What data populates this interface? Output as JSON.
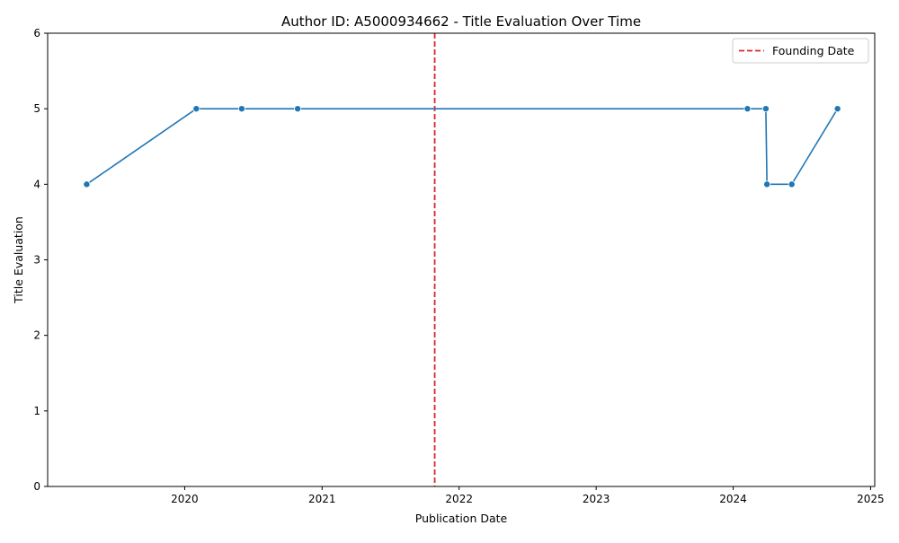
{
  "chart_data": {
    "type": "line",
    "title": "Author ID: A5000934662 - Title Evaluation Over Time",
    "xlabel": "Publication Date",
    "ylabel": "Title Evaluation",
    "xlim": [
      "2019-01-01",
      "2025-01-12"
    ],
    "ylim": [
      0,
      6
    ],
    "x_ticks": [
      "2020",
      "2021",
      "2022",
      "2023",
      "2024",
      "2025"
    ],
    "y_ticks": [
      "0",
      "1",
      "2",
      "3",
      "4",
      "5",
      "6"
    ],
    "grid": false,
    "legend_position": "top-right",
    "series": [
      {
        "color": "#1f77b4",
        "marker": "circle",
        "points": [
          {
            "x": "2019-04-15",
            "y": 4
          },
          {
            "x": "2020-02-01",
            "y": 5
          },
          {
            "x": "2020-06-01",
            "y": 5
          },
          {
            "x": "2020-10-28",
            "y": 5
          },
          {
            "x": "2024-02-08",
            "y": 5
          },
          {
            "x": "2024-03-28",
            "y": 5
          },
          {
            "x": "2024-03-31",
            "y": 4
          },
          {
            "x": "2024-06-05",
            "y": 4
          },
          {
            "x": "2024-10-05",
            "y": 5
          }
        ]
      }
    ],
    "reference_lines": [
      {
        "label": "Founding Date",
        "x": "2021-10-28",
        "color": "#d62728",
        "style": "dashed"
      }
    ]
  }
}
